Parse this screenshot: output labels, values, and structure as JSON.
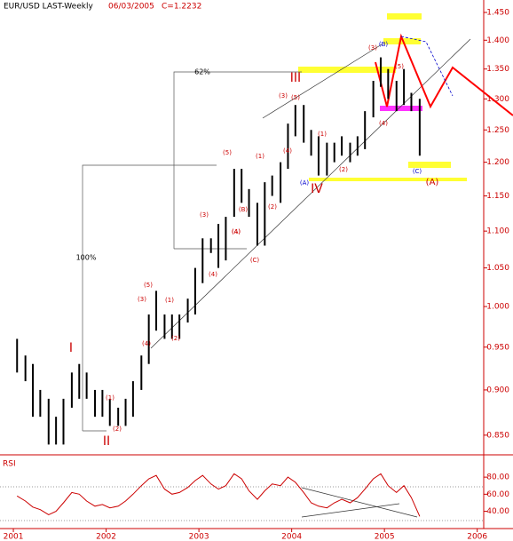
{
  "chart_data": {
    "type": "ohlc",
    "title": "EUR/USD LAST-Weekly",
    "subtitle": "06/03/2005",
    "last": "C=1.2232",
    "log_scale": true,
    "color": "#000000",
    "x": [
      2001.04,
      2001.13,
      2001.21,
      2001.29,
      2001.38,
      2001.46,
      2001.54,
      2001.63,
      2001.71,
      2001.79,
      2001.88,
      2001.96,
      2002.04,
      2002.13,
      2002.21,
      2002.29,
      2002.38,
      2002.46,
      2002.54,
      2002.63,
      2002.71,
      2002.79,
      2002.88,
      2002.96,
      2003.04,
      2003.13,
      2003.21,
      2003.29,
      2003.38,
      2003.46,
      2003.54,
      2003.63,
      2003.71,
      2003.79,
      2003.88,
      2003.96,
      2004.04,
      2004.13,
      2004.21,
      2004.29,
      2004.38,
      2004.46,
      2004.54,
      2004.63,
      2004.71,
      2004.79,
      2004.88,
      2004.96,
      2005.04,
      2005.13,
      2005.21,
      2005.29,
      2005.38
    ],
    "high": [
      0.96,
      0.94,
      0.93,
      0.9,
      0.89,
      0.87,
      0.89,
      0.92,
      0.93,
      0.92,
      0.9,
      0.9,
      0.89,
      0.88,
      0.89,
      0.91,
      0.94,
      0.99,
      1.02,
      0.99,
      0.99,
      0.99,
      1.01,
      1.05,
      1.09,
      1.09,
      1.11,
      1.12,
      1.19,
      1.19,
      1.16,
      1.14,
      1.17,
      1.18,
      1.2,
      1.26,
      1.29,
      1.29,
      1.25,
      1.24,
      1.23,
      1.23,
      1.24,
      1.23,
      1.24,
      1.28,
      1.33,
      1.37,
      1.35,
      1.33,
      1.35,
      1.31,
      1.3
    ],
    "low": [
      0.92,
      0.91,
      0.87,
      0.87,
      0.84,
      0.84,
      0.84,
      0.88,
      0.89,
      0.89,
      0.87,
      0.87,
      0.86,
      0.86,
      0.86,
      0.87,
      0.9,
      0.93,
      0.97,
      0.96,
      0.96,
      0.96,
      0.98,
      0.99,
      1.03,
      1.07,
      1.05,
      1.06,
      1.12,
      1.14,
      1.12,
      1.08,
      1.08,
      1.15,
      1.14,
      1.19,
      1.24,
      1.23,
      1.21,
      1.18,
      1.18,
      1.2,
      1.21,
      1.2,
      1.21,
      1.22,
      1.27,
      1.32,
      1.3,
      1.28,
      1.29,
      1.28,
      1.21
    ],
    "xlim": [
      2000.856,
      2006.07
    ],
    "ylim": [
      0.831,
      1.473
    ],
    "xticks": [
      2001,
      2002,
      2003,
      2004,
      2005,
      2006
    ],
    "yticks": [
      {
        "value": 0.85,
        "label": "0.850"
      },
      {
        "value": 0.9,
        "label": "0.900"
      },
      {
        "value": 0.95,
        "label": "0.950"
      },
      {
        "value": 1,
        "label": "1.000"
      },
      {
        "value": 1.05,
        "label": "1.050"
      },
      {
        "value": 1.1,
        "label": "1.100"
      },
      {
        "value": 1.15,
        "label": "1.150"
      },
      {
        "value": 1.2,
        "label": "1.200"
      },
      {
        "value": 1.25,
        "label": "1.250"
      },
      {
        "value": 1.3,
        "label": "1.300"
      },
      {
        "value": 1.35,
        "label": "1.350"
      },
      {
        "value": 1.4,
        "label": "1.400"
      },
      {
        "value": 1.45,
        "label": "1.450"
      }
    ],
    "annotations": [
      "I",
      "II",
      "III",
      "IV",
      "(A)",
      "62%",
      "100%",
      "(A)",
      "(B)",
      "(C)",
      "(5)",
      "(3)",
      "(1)",
      "(2)",
      "(4)",
      "(C)",
      "(4)",
      "(3)",
      "(5)",
      "(1)",
      "(4)",
      "(2)",
      "(3)",
      "(5)",
      "(4)",
      "(1)",
      "(2)",
      "(5)",
      "(3)",
      "(1)",
      "(4)",
      "(2)",
      "(B)",
      "(A)"
    ],
    "rsi": {
      "title": "RSI",
      "color": "#cc0000",
      "ylim": [
        25,
        103
      ],
      "yticks": [
        {
          "value": 40,
          "label": "40.00"
        },
        {
          "value": 60,
          "label": "60.00"
        },
        {
          "value": 80,
          "label": "80.00"
        }
      ],
      "values": [
        58,
        52,
        45,
        42,
        36,
        40,
        50,
        62,
        60,
        52,
        46,
        48,
        44,
        46,
        52,
        60,
        70,
        78,
        82,
        66,
        60,
        62,
        68,
        76,
        82,
        72,
        66,
        70,
        84,
        78,
        64,
        54,
        64,
        72,
        70,
        80,
        74,
        62,
        50,
        46,
        44,
        50,
        54,
        50,
        56,
        66,
        78,
        84,
        70,
        62,
        70,
        56,
        34
      ]
    }
  }
}
